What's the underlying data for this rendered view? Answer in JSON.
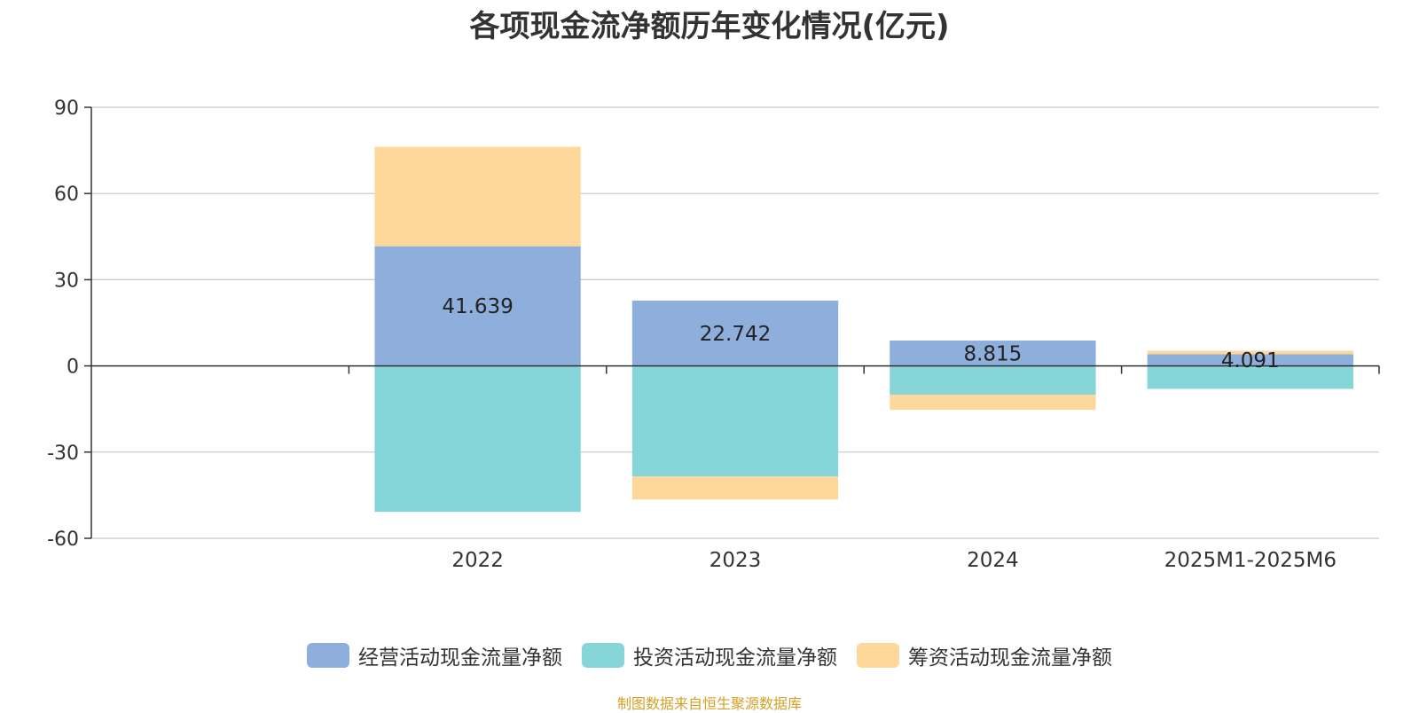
{
  "source_note": "制图数据来自恒生聚源数据库",
  "colors": {
    "operating": "#8eaedc",
    "investing": "#86d5d8",
    "financing": "#fed89b",
    "source": "#d4a026",
    "axis": "#333333",
    "grid": "#c8c8c8"
  },
  "chart_data": {
    "type": "bar",
    "stacked": true,
    "title": "各项现金流净额历年变化情况(亿元)",
    "xlabel": "",
    "ylabel": "",
    "categories": [
      "",
      "2022",
      "2023",
      "2024",
      "2025M1-2025M6"
    ],
    "ylim": [
      -60,
      90
    ],
    "yticks": [
      -60,
      -30,
      0,
      30,
      60,
      90
    ],
    "grid": true,
    "legend_position": "bottom",
    "series": [
      {
        "name": "经营活动现金流量净额",
        "color_key": "operating",
        "values": [
          null,
          41.639,
          22.742,
          8.815,
          4.091
        ],
        "labels": [
          "",
          "41.639",
          "22.742",
          "8.815",
          "4.091"
        ]
      },
      {
        "name": "投资活动现金流量净额",
        "color_key": "investing",
        "values": [
          null,
          -50.8,
          -38.5,
          -10.0,
          -8.0
        ]
      },
      {
        "name": "筹资活动现金流量净额",
        "color_key": "financing",
        "values": [
          null,
          34.6,
          -8.0,
          -5.3,
          1.2
        ]
      }
    ]
  }
}
